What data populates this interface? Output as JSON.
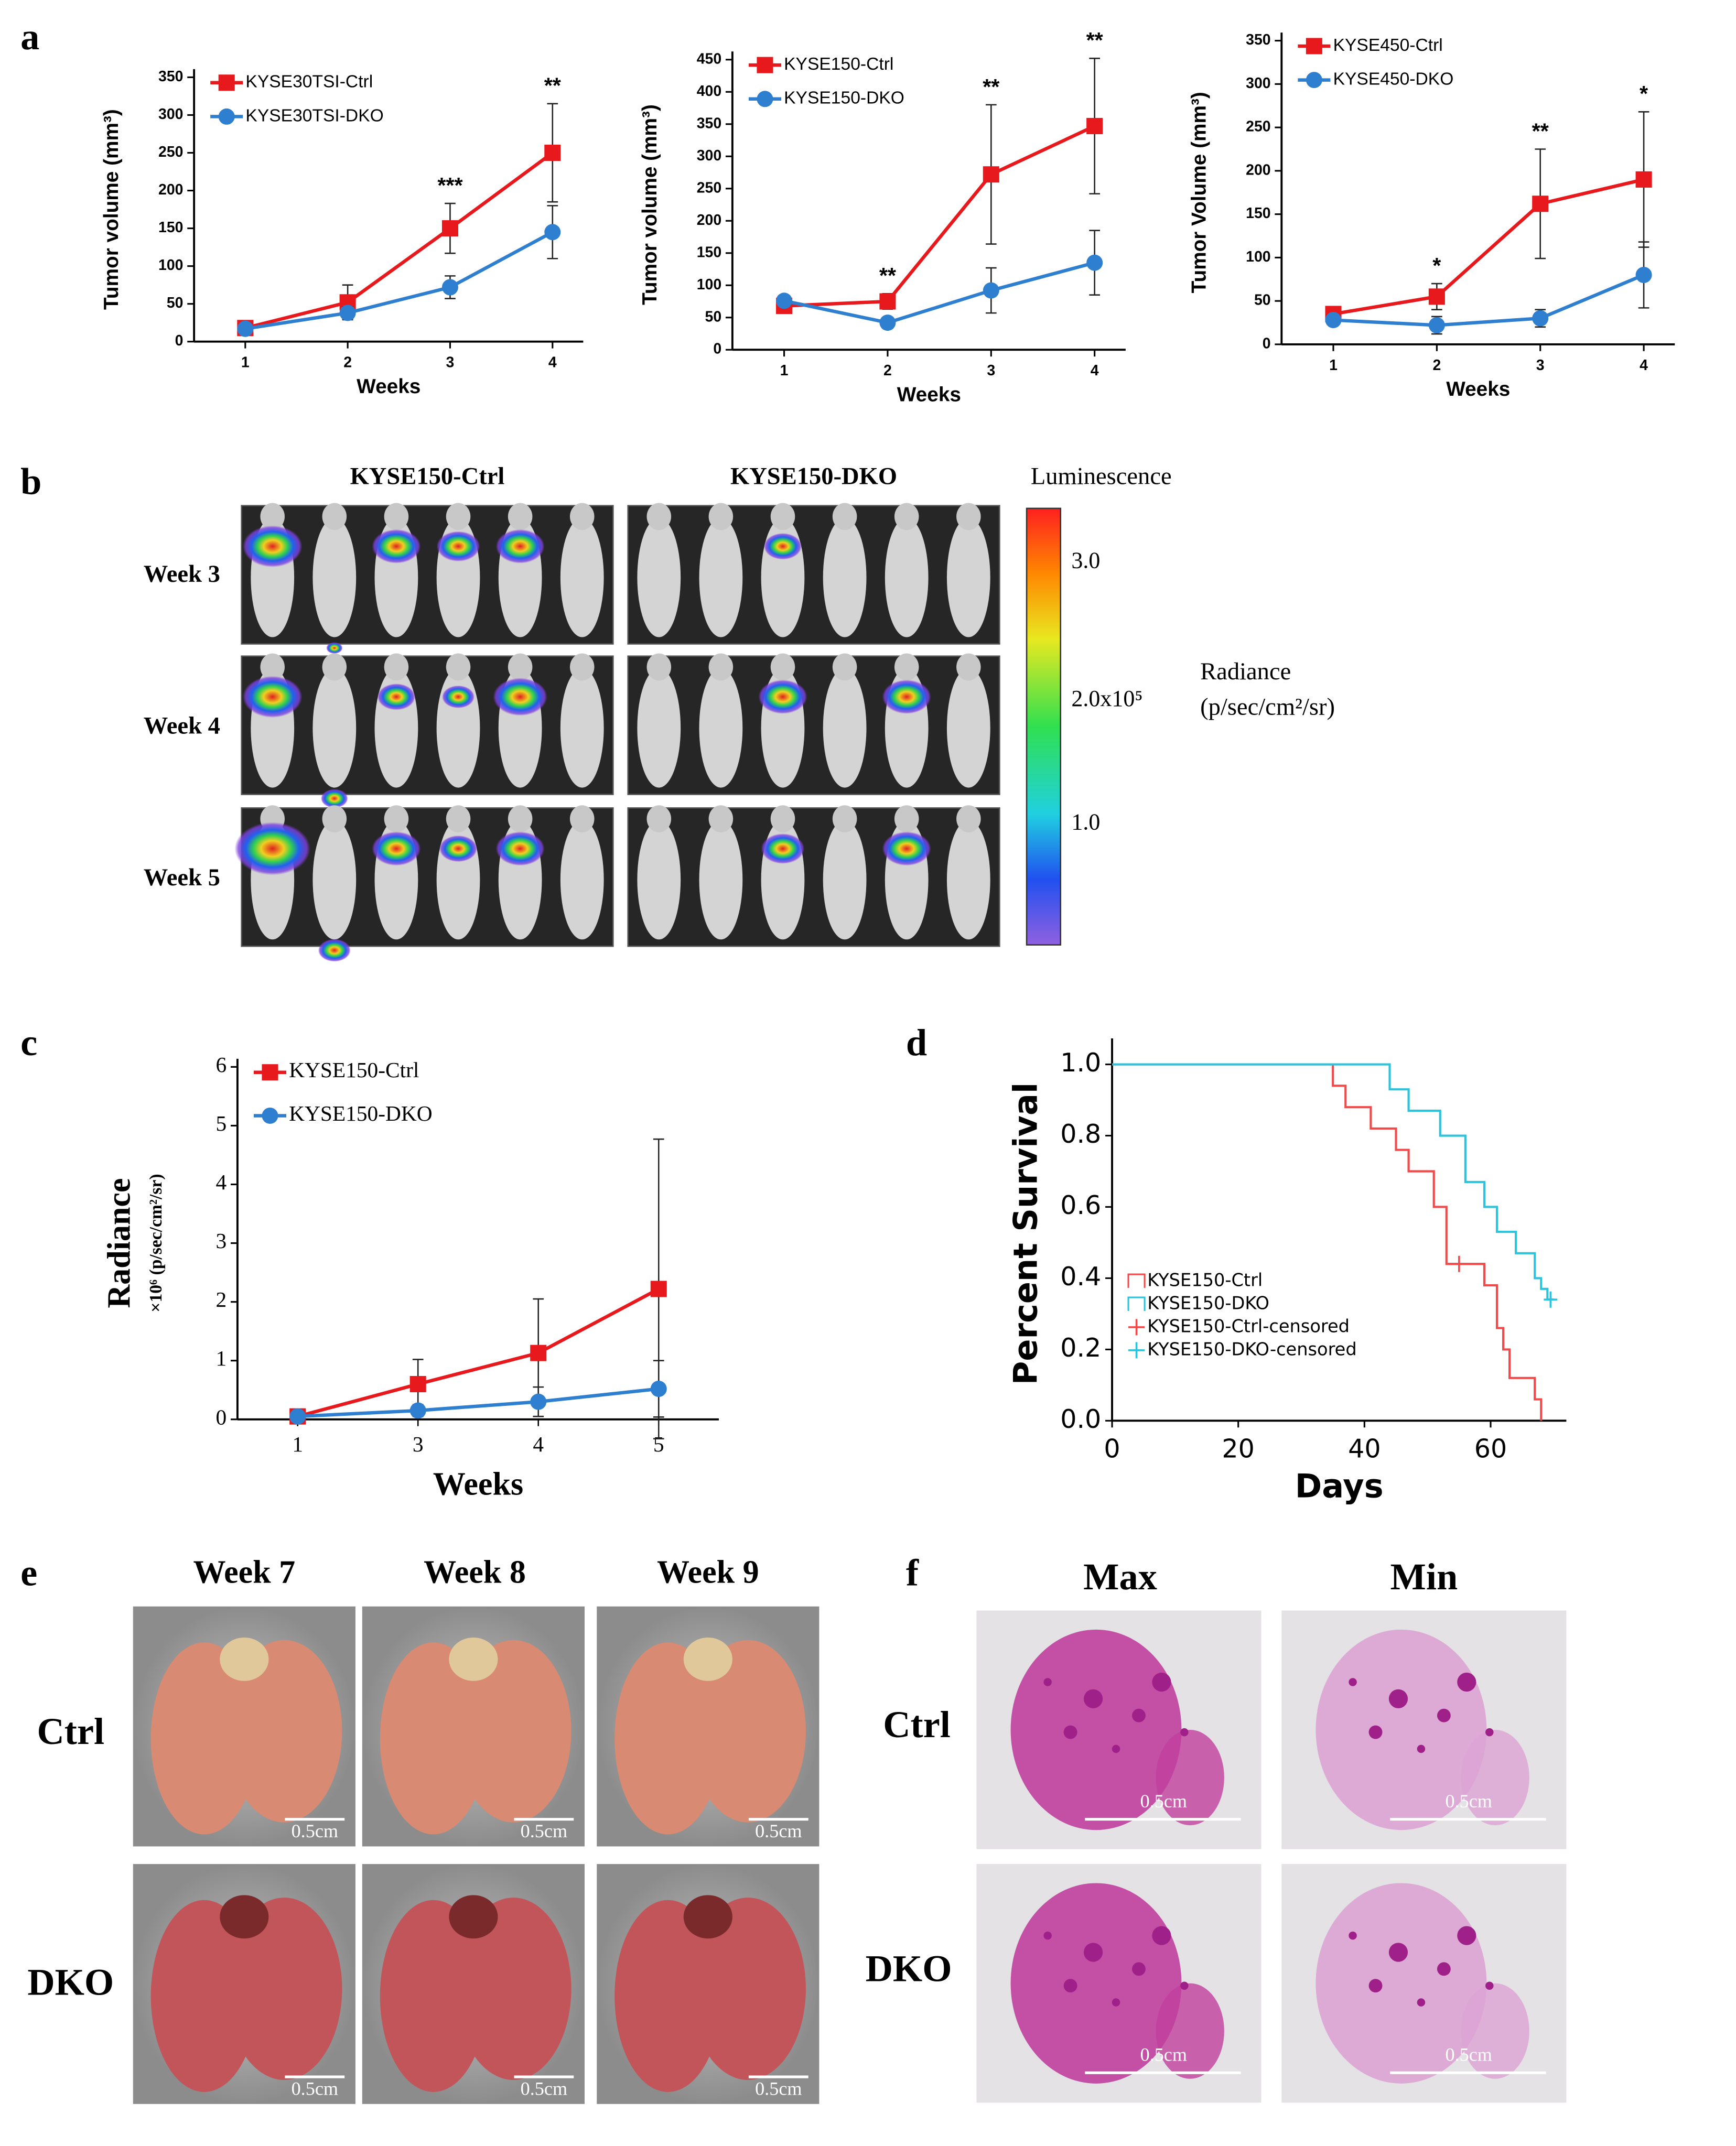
{
  "panel_labels": [
    "a",
    "b",
    "c",
    "d",
    "e",
    "f"
  ],
  "chart_data": [
    {
      "type": "line",
      "ylabel": "Tumor volume (mm³)",
      "xlabel": "Weeks",
      "x": [
        1,
        2,
        3,
        4
      ],
      "xlim": [
        0.5,
        4.3
      ],
      "xticks": [
        1,
        2,
        3,
        4
      ],
      "ylim": [
        0,
        350
      ],
      "yticks": [
        0,
        50,
        100,
        150,
        200,
        250,
        300,
        350
      ],
      "legend": "upper left",
      "series": [
        {
          "name": "KYSE30TSI-Ctrl",
          "color": "#e8191c",
          "marker": "square",
          "values": [
            18,
            52,
            150,
            250
          ],
          "errors": [
            3,
            23,
            33,
            65
          ]
        },
        {
          "name": "KYSE30TSI-DKO",
          "color": "#2f7fd0",
          "marker": "circle",
          "values": [
            17,
            38,
            72,
            145
          ],
          "errors": [
            3,
            8,
            15,
            35
          ]
        }
      ],
      "annotations": [
        {
          "x": 3,
          "text": "***"
        },
        {
          "x": 4,
          "text": "**"
        }
      ]
    },
    {
      "type": "line",
      "ylabel": "Tumor volume (mm³)",
      "xlabel": "Weeks",
      "x": [
        1,
        2,
        3,
        4
      ],
      "xlim": [
        0.5,
        4.3
      ],
      "xticks": [
        1,
        2,
        3,
        4
      ],
      "ylim": [
        0,
        450
      ],
      "yticks": [
        0,
        50,
        100,
        150,
        200,
        250,
        300,
        350,
        400,
        450
      ],
      "legend": "upper left",
      "series": [
        {
          "name": "KYSE150-Ctrl",
          "color": "#e8191c",
          "marker": "square",
          "values": [
            68,
            75,
            272,
            347
          ],
          "errors": [
            5,
            12,
            108,
            105
          ]
        },
        {
          "name": "KYSE150-DKO",
          "color": "#2f7fd0",
          "marker": "circle",
          "values": [
            76,
            42,
            92,
            135
          ],
          "errors": [
            5,
            5,
            35,
            50
          ]
        }
      ],
      "annotations": [
        {
          "x": 2,
          "text": "**"
        },
        {
          "x": 3,
          "text": "**"
        },
        {
          "x": 4,
          "text": "**"
        }
      ]
    },
    {
      "type": "line",
      "ylabel": "Tumor Volume (mm³)",
      "xlabel": "Weeks",
      "x": [
        1,
        2,
        3,
        4
      ],
      "xlim": [
        0.5,
        4.3
      ],
      "xticks": [
        1,
        2,
        3,
        4
      ],
      "ylim": [
        0,
        350
      ],
      "yticks": [
        0,
        50,
        100,
        150,
        200,
        250,
        300,
        350
      ],
      "legend": "upper left",
      "series": [
        {
          "name": "KYSE450-Ctrl",
          "color": "#e8191c",
          "marker": "square",
          "values": [
            35,
            55,
            162,
            190
          ],
          "errors": [
            4,
            15,
            63,
            78
          ]
        },
        {
          "name": "KYSE450-DKO",
          "color": "#2f7fd0",
          "marker": "circle",
          "values": [
            28,
            22,
            30,
            80
          ],
          "errors": [
            4,
            10,
            10,
            38
          ]
        }
      ],
      "annotations": [
        {
          "x": 2,
          "text": "*"
        },
        {
          "x": 3,
          "text": "**"
        },
        {
          "x": 4,
          "text": "*"
        }
      ]
    },
    {
      "type": "line",
      "ylabel": "Radiance",
      "ysublabel": "×10⁶ (p/sec/cm²/sr)",
      "xlabel": "Weeks",
      "categories": [
        "1",
        "3",
        "4",
        "5"
      ],
      "ylim": [
        0,
        6
      ],
      "yticks": [
        0,
        1,
        2,
        3,
        4,
        5,
        6
      ],
      "legend": "upper left",
      "series": [
        {
          "name": "KYSE150-Ctrl",
          "color": "#e8191c",
          "marker": "square",
          "values": [
            0.05,
            0.6,
            1.13,
            2.22
          ],
          "errors": [
            0.02,
            0.42,
            0.92,
            2.55
          ]
        },
        {
          "name": "KYSE150-DKO",
          "color": "#2f7fd0",
          "marker": "circle",
          "values": [
            0.05,
            0.15,
            0.3,
            0.52
          ],
          "errors": [
            0.02,
            0.1,
            0.25,
            0.48
          ]
        }
      ]
    },
    {
      "type": "step",
      "ylabel": "Percent Survival",
      "xlabel": "Days",
      "xlim": [
        0,
        72
      ],
      "xticks": [
        0,
        20,
        40,
        60
      ],
      "ylim": [
        0,
        1.05
      ],
      "yticks": [
        {
          "value": 0,
          "label": "0.0"
        },
        0.2,
        0.4,
        0.6,
        0.8,
        {
          "value": 1,
          "label": "1.0"
        }
      ],
      "legend": "lower left",
      "series": [
        {
          "name": "KYSE150-Ctrl",
          "color": "#f04a4a",
          "marker": "none",
          "x": [
            0,
            35,
            37,
            41,
            45,
            47,
            51,
            53,
            56,
            59,
            61,
            62,
            63,
            67,
            68
          ],
          "values": [
            1,
            0.94,
            0.88,
            0.82,
            0.76,
            0.7,
            0.6,
            0.44,
            0.44,
            0.38,
            0.26,
            0.2,
            0.12,
            0.06,
            0
          ]
        },
        {
          "name": "KYSE150-DKO",
          "color": "#2cc3dc",
          "marker": "none",
          "x": [
            0,
            44,
            47,
            52,
            56,
            59,
            61,
            64,
            67,
            68,
            69,
            70
          ],
          "values": [
            1,
            0.93,
            0.87,
            0.8,
            0.67,
            0.6,
            0.53,
            0.47,
            0.4,
            0.37,
            0.34,
            0.34
          ]
        },
        {
          "name": "KYSE150-Ctrl-censored",
          "color": "#f04a4a",
          "marker": "+",
          "x": [
            55
          ],
          "values": [
            0.44
          ]
        },
        {
          "name": "KYSE150-DKO-censored",
          "color": "#2cc3dc",
          "marker": "+",
          "x": [
            69.5
          ],
          "values": [
            0.34
          ]
        }
      ]
    }
  ],
  "imaging": {
    "groups": [
      "KYSE150-Ctrl",
      "KYSE150-DKO"
    ],
    "rows": [
      "Week 3",
      "Week 4",
      "Week 5"
    ],
    "colorbar_title": "Luminescence",
    "colorbar_ticks": [
      "3.0",
      "2.0x10⁵",
      "1.0"
    ],
    "unit_title": "Radiance",
    "unit": "(p/sec/cm²/sr)"
  },
  "lungs": {
    "columns": [
      "Week 7",
      "Week 8",
      "Week 9"
    ],
    "rows": [
      "Ctrl",
      "DKO"
    ],
    "scale": "0.5cm"
  },
  "histology": {
    "columns": [
      "Max",
      "Min"
    ],
    "rows": [
      "Ctrl",
      "DKO"
    ],
    "scale": "0.5cm"
  }
}
